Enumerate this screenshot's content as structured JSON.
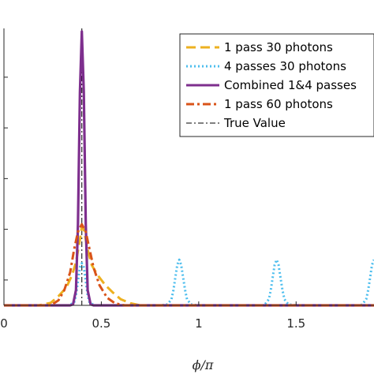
{
  "chart_data": {
    "type": "line",
    "xlabel": "ϕ/π",
    "ylabel": "",
    "xlim": [
      0,
      1.9
    ],
    "ylim": [
      0,
      0.54
    ],
    "x_ticks": [
      0,
      0.5,
      1,
      1.5
    ],
    "x_tick_labels": [
      "0",
      "0.5",
      "1",
      "1.5"
    ],
    "y_ticks": [
      0.05,
      0.15,
      0.25,
      0.35,
      0.45
    ],
    "true_value_x": 0.4,
    "legend_position": "top-right",
    "series": [
      {
        "name": "1 pass 30 photons",
        "color": "#edb120",
        "style": "dashed",
        "peaks": [
          {
            "x": 0.4,
            "y": 0.155
          }
        ],
        "x": [
          0,
          0.18,
          0.24,
          0.28,
          0.32,
          0.35,
          0.37,
          0.39,
          0.4,
          0.41,
          0.43,
          0.45,
          0.48,
          0.52,
          0.56,
          0.6,
          0.65,
          0.7,
          0.8,
          0.9,
          1.0,
          1.9
        ],
        "y": [
          0,
          0,
          0.005,
          0.018,
          0.035,
          0.06,
          0.085,
          0.13,
          0.155,
          0.15,
          0.11,
          0.08,
          0.06,
          0.04,
          0.025,
          0.012,
          0.004,
          0,
          0,
          0,
          0,
          0
        ]
      },
      {
        "name": "4 passes 30 photons",
        "color": "#4dbeee",
        "style": "dotted",
        "x": [
          0,
          0.33,
          0.36,
          0.37,
          0.38,
          0.39,
          0.4,
          0.41,
          0.42,
          0.43,
          0.44,
          0.47,
          0.8,
          0.84,
          0.86,
          0.87,
          0.88,
          0.89,
          0.9,
          0.91,
          0.92,
          0.93,
          0.94,
          0.96,
          1.0,
          1.33,
          1.34,
          1.36,
          1.37,
          1.38,
          1.39,
          1.4,
          1.41,
          1.42,
          1.43,
          1.44,
          1.46,
          1.5,
          1.83,
          1.84,
          1.86,
          1.87,
          1.88,
          1.89,
          1.9
        ],
        "y": [
          0,
          0,
          0.005,
          0.02,
          0.048,
          0.075,
          0.083,
          0.075,
          0.048,
          0.02,
          0.005,
          0,
          0,
          0.002,
          0.012,
          0.03,
          0.055,
          0.08,
          0.09,
          0.08,
          0.055,
          0.03,
          0.012,
          0.002,
          0,
          0,
          0.002,
          0.012,
          0.03,
          0.055,
          0.08,
          0.09,
          0.08,
          0.055,
          0.03,
          0.012,
          0.002,
          0,
          0,
          0.002,
          0.012,
          0.03,
          0.055,
          0.08,
          0.09
        ]
      },
      {
        "name": "Combined 1&4 passes",
        "color": "#7e2f8e",
        "style": "solid",
        "x": [
          0,
          0.34,
          0.355,
          0.37,
          0.38,
          0.39,
          0.4,
          0.41,
          0.42,
          0.43,
          0.445,
          0.46,
          1.9
        ],
        "y": [
          0,
          0,
          0.002,
          0.03,
          0.16,
          0.42,
          0.54,
          0.42,
          0.16,
          0.03,
          0.002,
          0,
          0
        ]
      },
      {
        "name": "1 pass 60 photons",
        "color": "#d95319",
        "style": "dashdot",
        "x": [
          0,
          0.24,
          0.28,
          0.31,
          0.34,
          0.36,
          0.38,
          0.4,
          0.42,
          0.44,
          0.46,
          0.49,
          0.53,
          0.57,
          0.62,
          1.9
        ],
        "y": [
          0,
          0,
          0.01,
          0.03,
          0.065,
          0.11,
          0.145,
          0.16,
          0.145,
          0.11,
          0.075,
          0.04,
          0.015,
          0.004,
          0,
          0
        ]
      },
      {
        "name": "True Value",
        "color": "#000000",
        "style": "dashdot-thin"
      }
    ]
  }
}
